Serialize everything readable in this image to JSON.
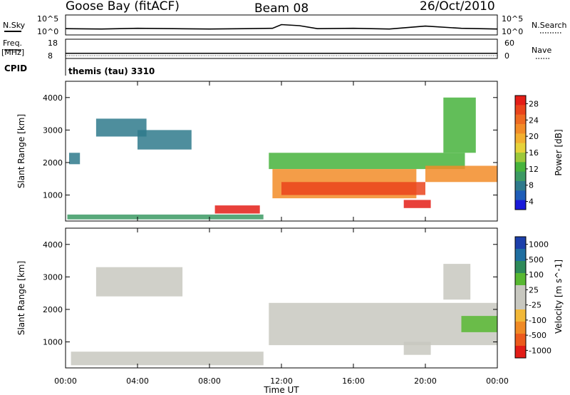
{
  "header": {
    "station": "Goose Bay (fitACF)",
    "beam": "Beam 08",
    "date": "26/Oct/2010"
  },
  "top_panels": {
    "nsky_label": "N.Sky",
    "nsearch_label": "N.Search",
    "nsky_ticks": [
      "10^5",
      "10^0"
    ],
    "nsearch_ticks": [
      "10^5",
      "10^0"
    ],
    "freq_label_1": "Freq.",
    "freq_label_2": "[MHz]",
    "freq_ticks": [
      "18",
      "8"
    ],
    "nave_label": "Nave",
    "nave_ticks": [
      "60",
      "0"
    ],
    "cpid_label": "CPID",
    "cpid_value": "themis (tau) 3310"
  },
  "axes": {
    "ylabel": "Slant Range [km]",
    "xlabel": "Time UT",
    "y_ticks": [
      "1000",
      "2000",
      "3000",
      "4000"
    ],
    "x_ticks": [
      "00:00",
      "04:00",
      "08:00",
      "12:00",
      "16:00",
      "20:00",
      "00:00"
    ]
  },
  "power_colorbar": {
    "label": "Power [dB]",
    "ticks": [
      "4",
      "8",
      "12",
      "16",
      "20",
      "24",
      "28"
    ],
    "colors": [
      "#1a1ad9",
      "#1f5db8",
      "#2f7a8c",
      "#3c9a64",
      "#46b33c",
      "#9cc83a",
      "#e6d23a",
      "#f2b030",
      "#f28c28",
      "#ee6a22",
      "#ea441c",
      "#e41e18"
    ]
  },
  "velocity_colorbar": {
    "label": "Velocity [m s^-1]",
    "ticks": [
      "1000",
      "500",
      "100",
      "25",
      "-25",
      "-100",
      "-500",
      "-1000"
    ],
    "colors": [
      "#1c3faa",
      "#1f6ea0",
      "#2e8a5a",
      "#58b832",
      "#c8c8c0",
      "#c8c8c0",
      "#f2b838",
      "#f08a24",
      "#ec5a1c",
      "#e21c16"
    ]
  },
  "chart_data": [
    {
      "type": "line",
      "title": "N.Sky / N.Search",
      "x": [
        0,
        2,
        4,
        6,
        8,
        10,
        11.5,
        12,
        13,
        14,
        16,
        18,
        20,
        22,
        24
      ],
      "y": [
        1.5,
        1.4,
        1.6,
        1.5,
        1.4,
        1.5,
        1.6,
        2.6,
        2.3,
        1.5,
        1.6,
        1.4,
        2.2,
        1.6,
        1.4
      ],
      "xlim": [
        0,
        24
      ],
      "ylim": [
        0,
        5
      ]
    },
    {
      "type": "line",
      "title": "Freq. / Nave",
      "x": [
        0,
        24
      ],
      "y": [
        10.5,
        10.5
      ],
      "xlim": [
        0,
        24
      ],
      "ylim": [
        8,
        18
      ]
    },
    {
      "type": "heatmap",
      "title": "Power",
      "xlabel": "Time UT",
      "ylabel": "Slant Range [km]",
      "xlim": [
        0,
        24
      ],
      "ylim": [
        200,
        4500
      ],
      "colorbar_range": [
        0,
        30
      ],
      "regions": [
        {
          "t": [
            0.1,
            11.0
          ],
          "r": [
            250,
            400
          ],
          "value": 8
        },
        {
          "t": [
            8.3,
            10.8
          ],
          "r": [
            430,
            680
          ],
          "value": 28
        },
        {
          "t": [
            1.7,
            4.5
          ],
          "r": [
            2800,
            3350
          ],
          "value": 6
        },
        {
          "t": [
            4.0,
            7.0
          ],
          "r": [
            2400,
            3000
          ],
          "value": 6
        },
        {
          "t": [
            0.2,
            0.8
          ],
          "r": [
            1950,
            2300
          ],
          "value": 6
        },
        {
          "t": [
            11.3,
            22.2
          ],
          "r": [
            1800,
            2300
          ],
          "value": 12
        },
        {
          "t": [
            11.5,
            19.5
          ],
          "r": [
            900,
            1800
          ],
          "value": 20
        },
        {
          "t": [
            12.0,
            20.0
          ],
          "r": [
            1000,
            1400
          ],
          "value": 26
        },
        {
          "t": [
            18.8,
            20.3
          ],
          "r": [
            600,
            850
          ],
          "value": 28
        },
        {
          "t": [
            20.0,
            24.0
          ],
          "r": [
            1400,
            1900
          ],
          "value": 20
        },
        {
          "t": [
            21.0,
            22.8
          ],
          "r": [
            2300,
            4000
          ],
          "value": 10
        }
      ]
    },
    {
      "type": "heatmap",
      "title": "Velocity",
      "xlabel": "Time UT",
      "ylabel": "Slant Range [km]",
      "xlim": [
        0,
        24
      ],
      "ylim": [
        200,
        4500
      ],
      "colorbar_range": [
        -1000,
        1000
      ],
      "regions": [
        {
          "t": [
            0.3,
            11.0
          ],
          "r": [
            280,
            700
          ],
          "value": 0
        },
        {
          "t": [
            1.7,
            6.5
          ],
          "r": [
            2400,
            3300
          ],
          "value": 0
        },
        {
          "t": [
            11.3,
            24.0
          ],
          "r": [
            900,
            2200
          ],
          "value": 0
        },
        {
          "t": [
            18.8,
            20.3
          ],
          "r": [
            600,
            1000
          ],
          "value": 100
        },
        {
          "t": [
            22.0,
            24.0
          ],
          "r": [
            1300,
            1800
          ],
          "value": 200
        },
        {
          "t": [
            21.0,
            22.5
          ],
          "r": [
            2300,
            3400
          ],
          "value": 0
        }
      ]
    }
  ]
}
